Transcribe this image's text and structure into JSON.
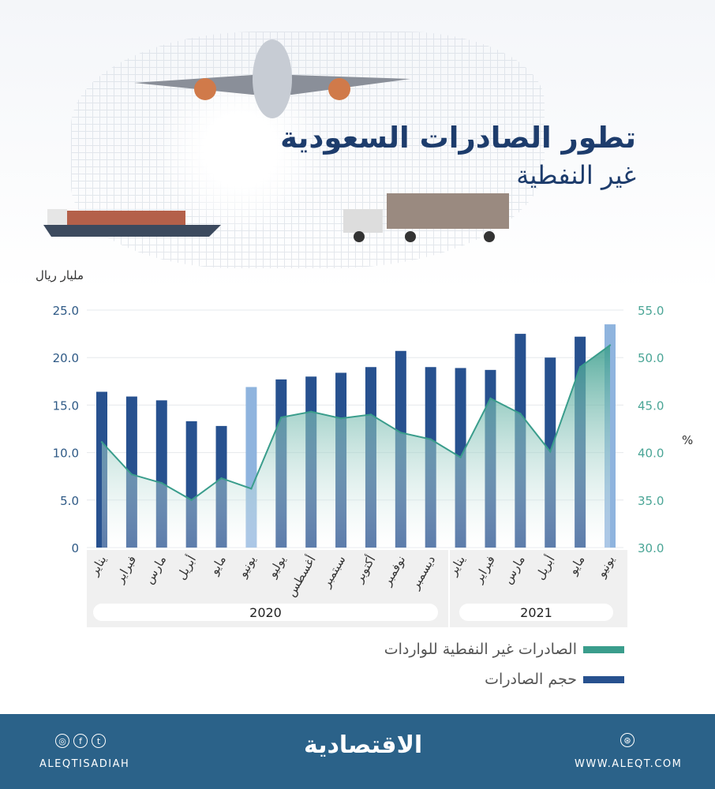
{
  "header": {
    "title_line1": "تطور الصادرات السعودية",
    "title_line2": "غير النفطية"
  },
  "chart_data": {
    "type": "bar+line",
    "title": "تطور الصادرات السعودية غير النفطية",
    "left_axis_label": "مليار ريال",
    "right_axis_label": "%",
    "categories": [
      "يناير",
      "فبراير",
      "مارس",
      "أبريل",
      "مايو",
      "يونيو",
      "يوليو",
      "أغسطس",
      "سبتمبر",
      "أكتوبر",
      "نوفمبر",
      "ديسمبر",
      "يناير",
      "فبراير",
      "مارس",
      "أبريل",
      "مايو",
      "يونيو"
    ],
    "years": [
      {
        "label": "2020",
        "months": 12
      },
      {
        "label": "2021",
        "months": 6
      }
    ],
    "left_ylim": [
      0,
      25
    ],
    "left_ticks": [
      "0",
      "5.0",
      "10.0",
      "15.0",
      "20.0",
      "25.0"
    ],
    "right_ylim": [
      30,
      55
    ],
    "right_ticks": [
      "30.0",
      "35.0",
      "40.0",
      "45.0",
      "50.0",
      "55.0"
    ],
    "grid": true,
    "series": [
      {
        "name": "حجم الصادرات",
        "type": "bar",
        "axis": "left",
        "color": "#27518f",
        "highlight_color": "#8fb4de",
        "highlight_indices": [
          5,
          17
        ],
        "values": [
          16.4,
          15.9,
          15.5,
          13.3,
          12.8,
          16.9,
          17.7,
          18.0,
          18.4,
          19.0,
          20.7,
          19.0,
          18.9,
          18.7,
          22.5,
          20.0,
          22.2,
          23.5
        ]
      },
      {
        "name": "الصادرات غير النفطية للواردات",
        "type": "line-area",
        "axis": "right",
        "color": "#3a9d8c",
        "values": [
          41.1,
          37.7,
          36.8,
          35.0,
          37.3,
          36.2,
          43.7,
          44.3,
          43.6,
          44.0,
          42.1,
          41.4,
          39.5,
          45.7,
          44.1,
          40.1,
          49.0,
          51.3
        ]
      }
    ],
    "legend_placement": "bottom-right"
  },
  "footer": {
    "handle": "ALEQTISADIAH",
    "logo": "الاقتصادية",
    "website": "WWW.ALEQT.COM",
    "social_icons": [
      "instagram-icon",
      "facebook-icon",
      "twitter-icon"
    ],
    "background": "#2b6289"
  }
}
